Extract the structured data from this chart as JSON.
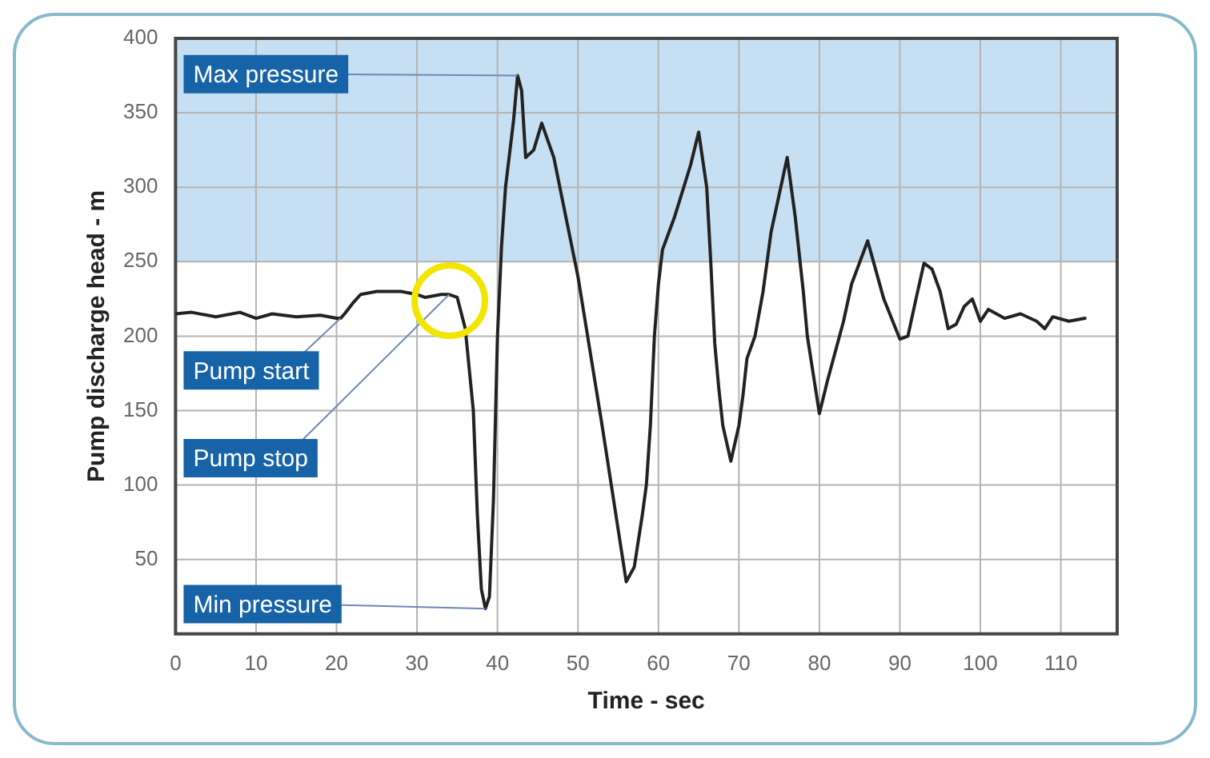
{
  "chart_data": {
    "type": "line",
    "xlabel": "Time - sec",
    "ylabel": "Pump discharge head - m",
    "x": [
      0,
      2,
      5,
      8,
      10,
      12,
      15,
      18,
      20,
      20.5,
      21,
      22,
      23,
      25,
      28,
      30,
      31,
      33,
      34,
      35,
      36,
      37,
      37.5,
      38,
      38.5,
      39,
      39.5,
      40,
      40.5,
      41,
      42,
      42.5,
      43,
      43.5,
      44.5,
      45.5,
      47,
      50,
      53,
      55,
      56,
      57,
      58,
      58.5,
      59,
      59.5,
      60,
      60.5,
      62,
      64,
      65,
      66,
      66.5,
      67,
      67.5,
      68,
      69,
      70,
      70.5,
      71,
      72,
      73,
      74,
      76,
      77,
      78,
      78.5,
      80,
      81,
      83,
      84,
      86,
      88,
      90,
      91,
      92,
      93,
      94,
      95,
      96,
      97,
      98,
      99,
      100,
      101,
      103,
      105,
      107,
      108,
      109,
      111,
      113
    ],
    "series": [
      {
        "color": "#222222",
        "values": [
          215,
          216,
          213,
          216,
          212,
          215,
          213,
          214,
          212,
          212,
          215,
          222,
          228,
          230,
          230,
          228,
          226,
          228,
          228,
          226,
          205,
          150,
          80,
          30,
          17,
          25,
          90,
          200,
          260,
          300,
          345,
          375,
          365,
          320,
          325,
          343,
          320,
          240,
          140,
          70,
          35,
          45,
          80,
          100,
          140,
          200,
          235,
          258,
          280,
          315,
          337,
          300,
          250,
          195,
          165,
          140,
          116,
          140,
          160,
          185,
          200,
          230,
          270,
          320,
          280,
          230,
          200,
          148,
          170,
          210,
          235,
          264,
          225,
          198,
          200,
          225,
          249,
          245,
          230,
          205,
          208,
          220,
          225,
          210,
          218,
          212,
          215,
          210,
          205,
          213,
          210,
          212
        ]
      }
    ],
    "xlim": [
      0,
      117
    ],
    "ylim": [
      0,
      400
    ],
    "xticks": [
      0,
      10,
      20,
      30,
      40,
      50,
      60,
      70,
      80,
      90,
      100,
      110
    ],
    "yticks": [
      50,
      100,
      150,
      200,
      250,
      300,
      350,
      400
    ],
    "grid": true,
    "legend": false,
    "marker": "none",
    "line_style": "solid",
    "bands": [
      {
        "axis": "y",
        "from": 250,
        "to": 400,
        "color": "#c6dff2"
      }
    ],
    "annotations": [
      {
        "text": "Max pressure",
        "x": 42.5,
        "y": 375
      },
      {
        "text": "Pump start",
        "x": 20.5,
        "y": 212
      },
      {
        "text": "Pump stop",
        "x": 34,
        "y": 228
      },
      {
        "text": "Min pressure",
        "x": 38.5,
        "y": 17
      }
    ]
  }
}
